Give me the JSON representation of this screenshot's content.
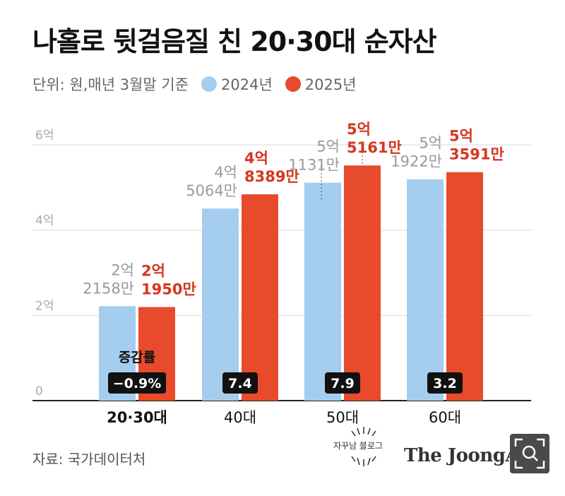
{
  "header": {
    "title": "나홀로 뒷걸음질 친 20·30대 순자산",
    "unit_note": "단위: 원,매년 3월말 기준"
  },
  "legend": [
    {
      "label": "2024년",
      "color": "#a5cdee"
    },
    {
      "label": "2025년",
      "color": "#e84b2b"
    }
  ],
  "chart_data": {
    "type": "bar",
    "categories": [
      "20·30대",
      "40대",
      "50대",
      "60대"
    ],
    "series": [
      {
        "name": "2024년",
        "values": [
          2.2158,
          4.5064,
          5.1131,
          5.1922
        ],
        "labels": [
          [
            "2억",
            "2158만"
          ],
          [
            "4억",
            "5064만"
          ],
          [
            "5억",
            "1131만"
          ],
          [
            "5억",
            "1922만"
          ]
        ]
      },
      {
        "name": "2025년",
        "values": [
          2.195,
          4.8389,
          5.5161,
          5.3591
        ],
        "labels": [
          [
            "2억",
            "1950만"
          ],
          [
            "4억",
            "8389만"
          ],
          [
            "5억",
            "5161만"
          ],
          [
            "5억",
            "3591만"
          ]
        ]
      }
    ],
    "y_ticks": [
      {
        "value": 0,
        "label": "0"
      },
      {
        "value": 2,
        "label": "2억"
      },
      {
        "value": 4,
        "label": "4억"
      },
      {
        "value": 6,
        "label": "6억"
      }
    ],
    "ylim": [
      0,
      6
    ],
    "grid": true,
    "growth_label": "증감률",
    "growth_rates": [
      "−0.9%",
      "7.4",
      "7.9",
      "3.2"
    ],
    "colors": {
      "2024": "#a5cdee",
      "2025": "#e84b2b",
      "grid": "#d9d9d9",
      "label_2024": "#999999",
      "label_2025": "#d6371f",
      "badge": "#111111"
    }
  },
  "footer": {
    "source": "자료: 국가데이터처",
    "brand": "The JoongAng",
    "blog_watermark": "자꾸남 블로그"
  }
}
